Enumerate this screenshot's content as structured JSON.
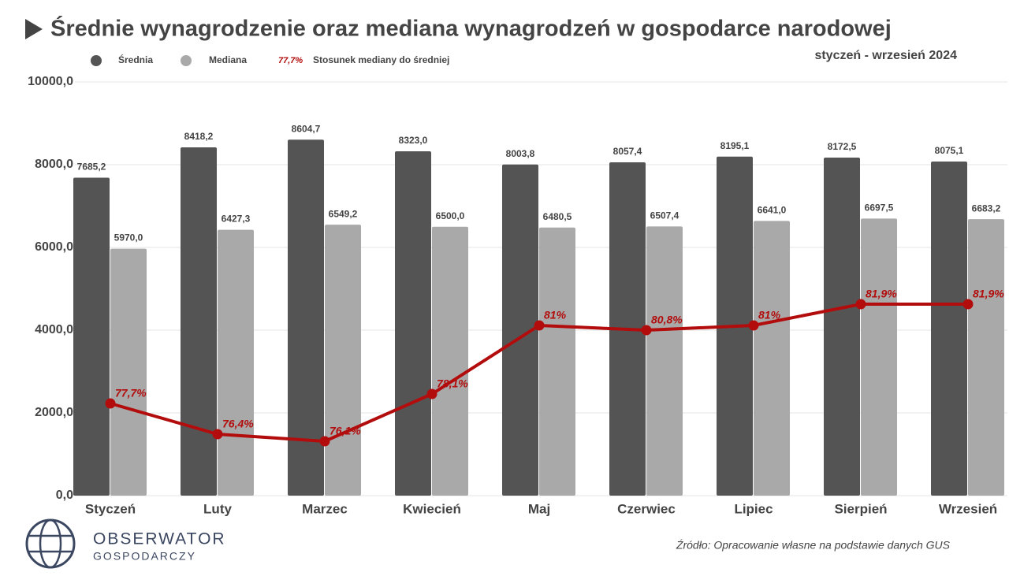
{
  "chart_data": {
    "type": "bar",
    "title": "Średnie wynagrodzenie oraz mediana wynagrodzeń w gospodarce narodowej",
    "subtitle": "styczeń - wrzesień 2024",
    "source": "Źródło: Opracowanie własne na podstawie danych GUS",
    "categories": [
      "Styczeń",
      "Luty",
      "Marzec",
      "Kwiecień",
      "Maj",
      "Czerwiec",
      "Lipiec",
      "Sierpień",
      "Wrzesień"
    ],
    "ylim": [
      0,
      10000
    ],
    "yticks": [
      {
        "value": 0,
        "label": "0,0"
      },
      {
        "value": 2000,
        "label": "2000,0"
      },
      {
        "value": 4000,
        "label": "4000,0"
      },
      {
        "value": 6000,
        "label": "6000,0"
      },
      {
        "value": 8000,
        "label": "8000,0"
      },
      {
        "value": 10000,
        "label": "10000,0"
      }
    ],
    "y2lim": [
      73.8,
      91.3
    ],
    "grid": true,
    "series": [
      {
        "name": "Średnia",
        "type": "bar",
        "color": "#545454",
        "values": [
          7685.2,
          8418.2,
          8604.7,
          8323.0,
          8003.8,
          8057.4,
          8195.1,
          8172.5,
          8075.1
        ],
        "value_labels": [
          "7685,2",
          "8418,2",
          "8604,7",
          "8323,0",
          "8003,8",
          "8057,4",
          "8195,1",
          "8172,5",
          "8075,1"
        ]
      },
      {
        "name": "Mediana",
        "type": "bar",
        "color": "#a9a9a9",
        "values": [
          5970.0,
          6427.3,
          6549.2,
          6500.0,
          6480.5,
          6507.4,
          6641.0,
          6697.5,
          6683.2
        ],
        "value_labels": [
          "5970,0",
          "6427,3",
          "6549,2",
          "6500,0",
          "6480,5",
          "6507,4",
          "6641,0",
          "6697,5",
          "6683,2"
        ]
      },
      {
        "name": "Stosunek mediany do średniej",
        "type": "line",
        "axis": "y2",
        "color": "#b20c0c",
        "values": [
          77.7,
          76.4,
          76.1,
          78.1,
          81,
          80.8,
          81,
          81.9,
          81.9
        ],
        "value_labels": [
          "77,7%",
          "76,4%",
          "76,1%",
          "78,1%",
          "81%",
          "80,8%",
          "81%",
          "81,9%",
          "81,9%"
        ]
      }
    ]
  },
  "logo": {
    "name": "OBSERWATOR",
    "subname": "GOSPODARCZY"
  }
}
